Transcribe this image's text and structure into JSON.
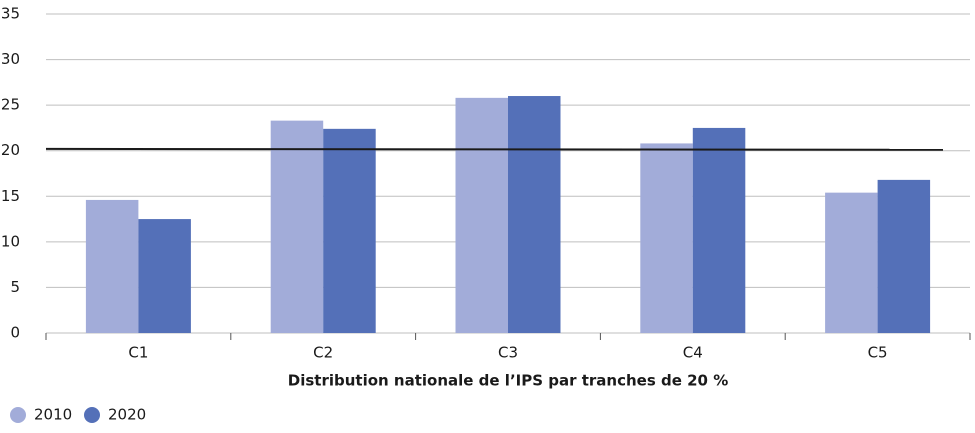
{
  "chart_data": {
    "type": "bar",
    "x_label": "Distribution nationale de l’IPS par tranches de 20 %",
    "categories": [
      "C1",
      "C2",
      "C3",
      "C4",
      "C5"
    ],
    "series": [
      {
        "name": "2010",
        "color": "#a2acd9",
        "values": [
          14.6,
          23.3,
          25.8,
          20.8,
          15.4
        ]
      },
      {
        "name": "2020",
        "color": "#5470b8",
        "values": [
          12.5,
          22.4,
          26.0,
          22.5,
          16.8
        ]
      }
    ],
    "reference_line": {
      "color": "#1a1a1a",
      "values": [
        20.2,
        20.1
      ]
    },
    "ylim": [
      0,
      35
    ],
    "yticks": [
      0,
      5,
      10,
      15,
      20,
      25,
      30,
      35
    ],
    "grid": true
  }
}
